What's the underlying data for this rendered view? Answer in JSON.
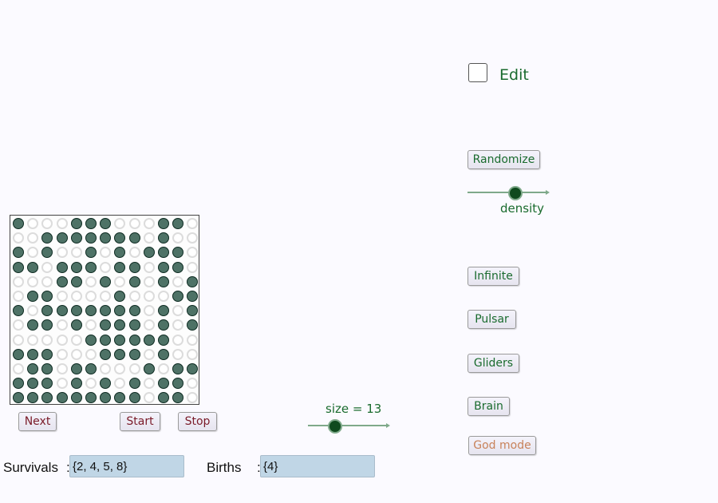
{
  "edit": {
    "label": "Edit",
    "checked": false
  },
  "buttons": {
    "randomize": "Randomize",
    "infinite": "Infinite",
    "pulsar": "Pulsar",
    "gliders": "Gliders",
    "brain": "Brain",
    "god_mode": "God mode",
    "next": "Next",
    "start": "Start",
    "stop": "Stop"
  },
  "density": {
    "label": "density",
    "value": 0.55
  },
  "size": {
    "label": "size = 13",
    "value": 13,
    "fraction": 0.3
  },
  "grid": {
    "cols": 13,
    "rows": [
      "1000111000110",
      "0011111110100",
      "1010010101110",
      "1101110110110",
      "0001101010101",
      "0110000100011",
      "1011111110101",
      "0110101110101",
      "0000011111100",
      "1110001110100",
      "0110110001011",
      "1110101010110",
      "1111111110110"
    ]
  },
  "rules": {
    "survivals_label": "Survivals",
    "survivals_sep": ":",
    "survivals_value": "{2, 4, 5, 8}",
    "births_label": "Births",
    "births_sep": ":",
    "births_value": "{4}"
  },
  "colors": {
    "text_green": "#1a6b2e",
    "cell_alive": "#4e7266",
    "cell_dead_ring": "#dcdcdc",
    "field_bg": "#c0d6e6",
    "background": "#fbfaff"
  }
}
